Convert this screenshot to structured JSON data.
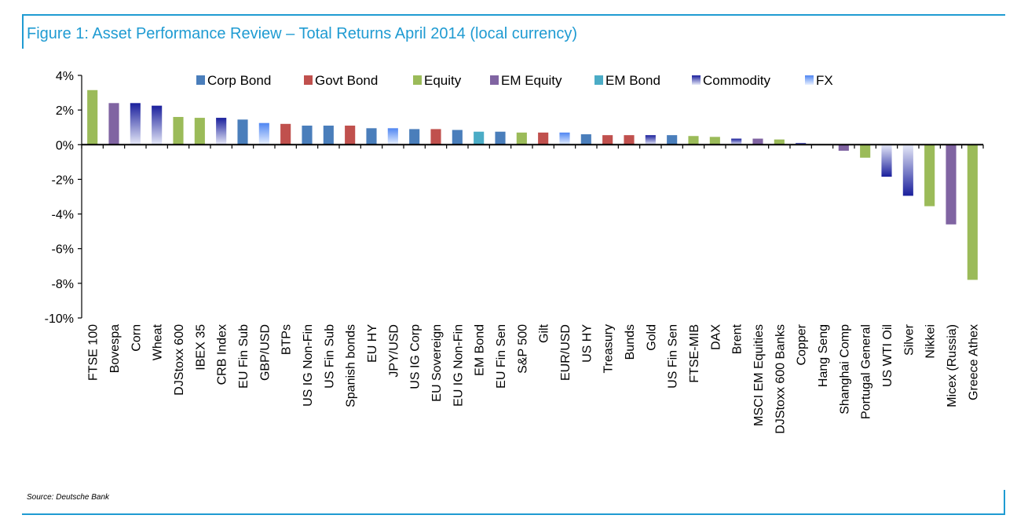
{
  "header": {
    "title": "Figure 1: Asset Performance Review – Total Returns April 2014 (local currency)"
  },
  "footer": {
    "source": "Source: Deutsche Bank"
  },
  "colors": {
    "frame": "#1f9bd2",
    "Corp Bond": "#4a7ebb",
    "Govt Bond": "#c0504d",
    "Equity": "#9bbb59",
    "EM Equity": "#8064a2",
    "EM Bond": "#4bacc6",
    "Commodity": "#1f2fa8",
    "FX": "#5b8ff0"
  },
  "chart_data": {
    "type": "bar",
    "title": "Figure 1: Asset Performance Review – Total Returns April 2014 (local currency)",
    "xlabel": "",
    "ylabel": "",
    "ylim": [
      -10,
      4
    ],
    "yticks": [
      4,
      2,
      0,
      -2,
      -4,
      -6,
      -8,
      -10
    ],
    "ytick_labels": [
      "4%",
      "2%",
      "0%",
      "-2%",
      "-4%",
      "-6%",
      "-8%",
      "-10%"
    ],
    "legend_position": "top",
    "legend": [
      "Corp Bond",
      "Govt Bond",
      "Equity",
      "EM Equity",
      "EM Bond",
      "Commodity",
      "FX"
    ],
    "categories": [
      "FTSE 100",
      "Bovespa",
      "Corn",
      "Wheat",
      "DJStoxx 600",
      "IBEX 35",
      "CRB Index",
      "EU Fin Sub",
      "GBP/USD",
      "BTPs",
      "US IG Non-Fin",
      "US Fin Sub",
      "Spanish bonds",
      "EU HY",
      "JPY/USD",
      "US IG Corp",
      "EU Sovereign",
      "EU IG Non-Fin",
      "EM Bond",
      "EU Fin Sen",
      "S&P 500",
      "Gilt",
      "EUR/USD",
      "US HY",
      "Treasury",
      "Bunds",
      "Gold",
      "US Fin Sen",
      "FTSE-MIB",
      "DAX",
      "Brent",
      "MSCI EM Equities",
      "DJStoxx 600 Banks",
      "Copper",
      "Hang Seng",
      "Shanghai Comp",
      "Portugal General",
      "US WTI Oil",
      "Silver",
      "Nikkei",
      "Micex (Russia)",
      "Greece Athex"
    ],
    "values": [
      3.15,
      2.4,
      2.4,
      2.25,
      1.6,
      1.55,
      1.55,
      1.45,
      1.25,
      1.2,
      1.1,
      1.1,
      1.1,
      0.95,
      0.95,
      0.9,
      0.9,
      0.85,
      0.75,
      0.75,
      0.7,
      0.7,
      0.7,
      0.6,
      0.55,
      0.55,
      0.55,
      0.55,
      0.5,
      0.45,
      0.35,
      0.35,
      0.3,
      0.1,
      0.0,
      -0.35,
      -0.75,
      -1.85,
      -2.95,
      -3.55,
      -4.6,
      -7.8
    ],
    "asset_class": [
      "Equity",
      "EM Equity",
      "Commodity",
      "Commodity",
      "Equity",
      "Equity",
      "Commodity",
      "Corp Bond",
      "FX",
      "Govt Bond",
      "Corp Bond",
      "Corp Bond",
      "Govt Bond",
      "Corp Bond",
      "FX",
      "Corp Bond",
      "Govt Bond",
      "Corp Bond",
      "EM Bond",
      "Corp Bond",
      "Equity",
      "Govt Bond",
      "FX",
      "Corp Bond",
      "Govt Bond",
      "Govt Bond",
      "Commodity",
      "Corp Bond",
      "Equity",
      "Equity",
      "Commodity",
      "EM Equity",
      "Equity",
      "Commodity",
      "EM Equity",
      "EM Equity",
      "Equity",
      "Commodity",
      "Commodity",
      "Equity",
      "EM Equity",
      "Equity"
    ]
  }
}
